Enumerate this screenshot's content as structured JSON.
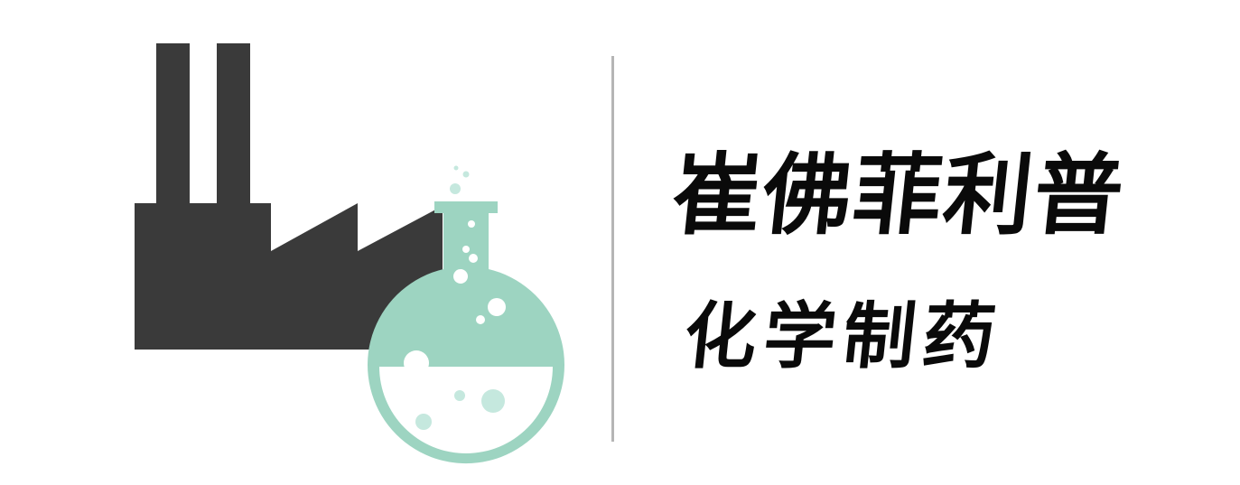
{
  "brand": {
    "company_name": "崔佛菲利普",
    "tagline": "化学制药"
  },
  "icons": {
    "factory": "factory-icon",
    "flask": "flask-icon",
    "divider": "vertical-divider"
  },
  "colors": {
    "factory": "#3a3a3a",
    "flask": "#9dd4c1",
    "liquid": "#ffffff",
    "bubbles": "#c5e8de",
    "divider": "#b5b5b5",
    "text": "#0a0a0a",
    "background": "#ffffff"
  }
}
